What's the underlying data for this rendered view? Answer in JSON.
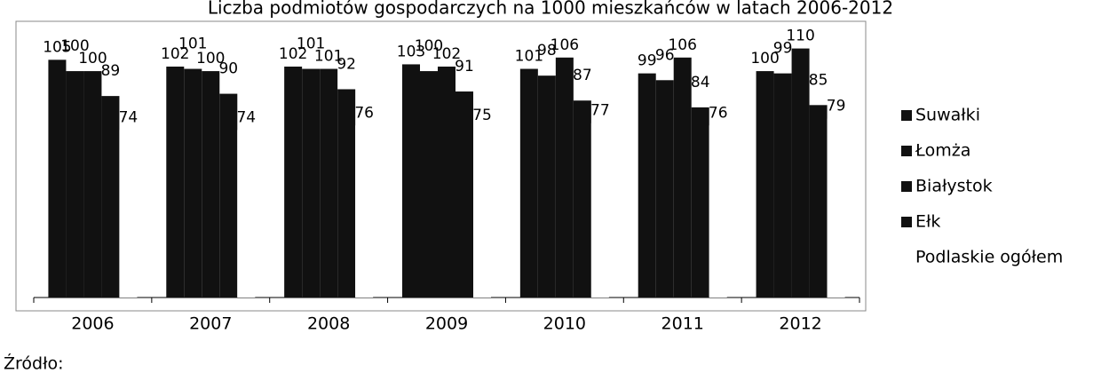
{
  "chart_data": {
    "type": "bar",
    "title": "Liczba podmiotów gospodarczych na 1000 mieszkańców w latach 2006-2012",
    "source": "Źródło:",
    "categories": [
      "2006",
      "2007",
      "2008",
      "2009",
      "2010",
      "2011",
      "2012"
    ],
    "series": [
      {
        "name": "Suwałki",
        "color": "#111111",
        "values": [
          105,
          102,
          102,
          103,
          101,
          99,
          100
        ]
      },
      {
        "name": "Łomża",
        "color": "#111111",
        "values": [
          100,
          101,
          101,
          100,
          98,
          96,
          99
        ]
      },
      {
        "name": "Białystok",
        "color": "#111111",
        "values": [
          100,
          100,
          101,
          102,
          106,
          106,
          110
        ]
      },
      {
        "name": "Ełk",
        "color": "#111111",
        "values": [
          89,
          90,
          92,
          91,
          87,
          84,
          85
        ]
      },
      {
        "name": "Podlaskie ogółem",
        "color": "#ffffff",
        "values": [
          74,
          74,
          76,
          75,
          77,
          76,
          79
        ]
      }
    ],
    "ylim": [
      0,
      122
    ],
    "legend": "right"
  }
}
